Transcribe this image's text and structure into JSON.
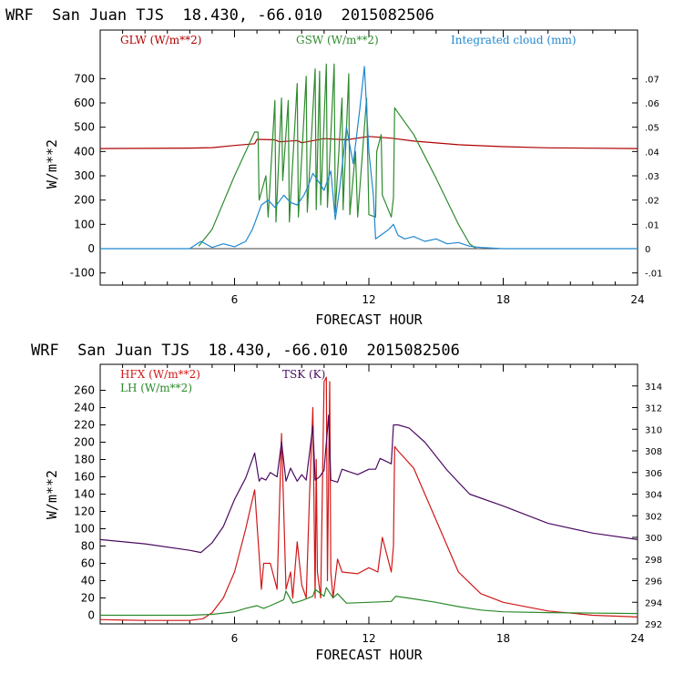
{
  "chart_data": [
    {
      "type": "line",
      "title": "WRF  San Juan TJS  18.430, -66.010  2015082506",
      "xlabel": "FORECAST HOUR",
      "ylabel": "W/m**2",
      "xlim": [
        0,
        24
      ],
      "ylim": [
        -150,
        900
      ],
      "y2lim": [
        -0.015,
        0.09
      ],
      "xticks": [
        "6",
        "12",
        "18",
        "24"
      ],
      "yticks": [
        "-100",
        "0",
        "100",
        "200",
        "300",
        "400",
        "500",
        "600",
        "700"
      ],
      "y2ticks": [
        "-.01",
        "0",
        ".01",
        ".02",
        ".03",
        ".04",
        ".05",
        ".06",
        ".07"
      ],
      "legend_placement": "top",
      "series": [
        {
          "name": "GLW (W/m**2)",
          "color": "#b00000",
          "axis": "left",
          "x": [
            0,
            2,
            4,
            5,
            6,
            6.9,
            7,
            7.8,
            8,
            8.8,
            9,
            10,
            11,
            12,
            13,
            14,
            16,
            18,
            20,
            24
          ],
          "y": [
            412,
            413,
            414,
            416,
            425,
            432,
            450,
            448,
            440,
            445,
            436,
            453,
            448,
            462,
            455,
            443,
            428,
            420,
            415,
            412
          ]
        },
        {
          "name": "GSW (W/m**2)",
          "color": "#2e8b2e",
          "axis": "left",
          "x": [
            4.4,
            5,
            6,
            6.9,
            7.05,
            7.1,
            7.4,
            7.5,
            7.8,
            7.85,
            8.1,
            8.15,
            8.4,
            8.45,
            8.8,
            8.85,
            9.2,
            9.25,
            9.6,
            9.65,
            9.8,
            9.85,
            10.1,
            10.15,
            10.45,
            10.5,
            10.8,
            10.85,
            11.1,
            11.15,
            11.4,
            11.5,
            11.9,
            12,
            12.3,
            12.35,
            12.55,
            12.6,
            13.0,
            13.1,
            13.15,
            13.3,
            14,
            15,
            16,
            16.5,
            16.8
          ],
          "y": [
            10,
            80,
            300,
            480,
            480,
            200,
            300,
            130,
            610,
            110,
            620,
            280,
            610,
            110,
            680,
            130,
            710,
            150,
            740,
            160,
            730,
            180,
            760,
            170,
            760,
            150,
            620,
            160,
            720,
            140,
            400,
            130,
            620,
            140,
            130,
            400,
            470,
            220,
            130,
            210,
            580,
            560,
            470,
            290,
            100,
            20,
            0
          ]
        },
        {
          "name": "Integrated cloud (mm)",
          "color": "#1e88d0",
          "axis": "right",
          "x": [
            0,
            4,
            4.5,
            5,
            5.5,
            6,
            6.5,
            6.8,
            7.2,
            7.5,
            7.8,
            8.2,
            8.5,
            8.8,
            9.1,
            9.3,
            9.5,
            9.8,
            10,
            10.3,
            10.5,
            10.7,
            11,
            11.3,
            11.6,
            11.8,
            12,
            12.2,
            12.3,
            12.6,
            12.9,
            13.1,
            13.3,
            13.6,
            14,
            14.5,
            15,
            15.5,
            16,
            16.5,
            17,
            18,
            24
          ],
          "y": [
            0,
            0,
            0.003,
            0.0005,
            0.002,
            0.0008,
            0.003,
            0.008,
            0.018,
            0.02,
            0.017,
            0.022,
            0.019,
            0.018,
            0.022,
            0.026,
            0.031,
            0.027,
            0.024,
            0.032,
            0.012,
            0.025,
            0.05,
            0.035,
            0.058,
            0.075,
            0.04,
            0.022,
            0.004,
            0.006,
            0.008,
            0.01,
            0.0055,
            0.004,
            0.005,
            0.003,
            0.004,
            0.002,
            0.0025,
            0.001,
            0.0005,
            0,
            0
          ]
        }
      ]
    },
    {
      "type": "line",
      "title": "WRF  San Juan TJS  18.430, -66.010  2015082506",
      "xlabel": "FORECAST HOUR",
      "ylabel": "W/m**2",
      "xlim": [
        0,
        24
      ],
      "ylim": [
        -10,
        290
      ],
      "y2lim": [
        292,
        316
      ],
      "xticks": [
        "6",
        "12",
        "18",
        "24"
      ],
      "yticks": [
        "0",
        "20",
        "40",
        "60",
        "80",
        "100",
        "120",
        "140",
        "160",
        "180",
        "200",
        "220",
        "240",
        "260"
      ],
      "y2ticks": [
        "292",
        "294",
        "296",
        "298",
        "300",
        "302",
        "304",
        "306",
        "308",
        "310",
        "312",
        "314"
      ],
      "legend_placement": "top",
      "series": [
        {
          "name": "HFX (W/m**2)",
          "color": "#d01818",
          "axis": "left",
          "x": [
            0,
            2,
            4,
            4.6,
            5,
            5.5,
            6,
            6.5,
            6.9,
            7.1,
            7.2,
            7.3,
            7.6,
            7.9,
            8.1,
            8.3,
            8.5,
            8.6,
            8.8,
            9.0,
            9.2,
            9.35,
            9.5,
            9.6,
            9.65,
            9.7,
            9.85,
            10.0,
            10.1,
            10.15,
            10.25,
            10.3,
            10.4,
            10.6,
            10.8,
            11.5,
            12,
            12.4,
            12.6,
            13.0,
            13.1,
            13.15,
            13.3,
            14,
            15,
            16,
            17,
            18,
            20,
            22,
            24
          ],
          "y": [
            -5,
            -6,
            -6,
            -4,
            3,
            20,
            50,
            100,
            145,
            70,
            30,
            60,
            60,
            30,
            210,
            30,
            50,
            20,
            85,
            35,
            20,
            140,
            240,
            20,
            180,
            50,
            20,
            270,
            275,
            40,
            270,
            50,
            20,
            65,
            50,
            48,
            55,
            50,
            90,
            50,
            80,
            195,
            190,
            170,
            110,
            50,
            25,
            15,
            5,
            0,
            -2
          ]
        },
        {
          "name": "LH (W/m**2)",
          "color": "#2a8a2a",
          "axis": "left",
          "x": [
            0,
            4,
            5,
            6,
            6.5,
            7,
            7.3,
            7.6,
            8.2,
            8.3,
            8.6,
            9.0,
            9.5,
            9.6,
            10.0,
            10.1,
            10.4,
            10.6,
            11,
            12,
            13,
            13.2,
            14,
            15,
            16,
            17,
            18,
            20,
            24
          ],
          "y": [
            0,
            0,
            1,
            4,
            8,
            11,
            8,
            11,
            18,
            28,
            14,
            17,
            22,
            30,
            22,
            32,
            20,
            25,
            14,
            15,
            16,
            22,
            19,
            15,
            10,
            6,
            4,
            3,
            2
          ]
        },
        {
          "name": "TSK (K)",
          "color": "#4b0a60",
          "axis": "right",
          "x": [
            0,
            2,
            4,
            4.5,
            5,
            5.5,
            6,
            6.5,
            6.9,
            7.1,
            7.2,
            7.4,
            7.6,
            7.9,
            8.1,
            8.3,
            8.5,
            8.8,
            9.0,
            9.2,
            9.5,
            9.6,
            9.8,
            10.0,
            10.2,
            10.3,
            10.6,
            10.8,
            11.5,
            12,
            12.3,
            12.5,
            13.0,
            13.1,
            13.3,
            13.8,
            14.5,
            15.5,
            16.5,
            18,
            20,
            22,
            24
          ],
          "y": [
            299.8,
            299.4,
            298.8,
            298.6,
            299.5,
            301,
            303.5,
            305.5,
            307.8,
            305.2,
            305.5,
            305.3,
            306,
            305.6,
            308.8,
            305.2,
            306.4,
            305.2,
            305.8,
            305.3,
            310.3,
            305.3,
            305.6,
            306.2,
            311.3,
            305.3,
            305.1,
            306.3,
            305.8,
            306.3,
            306.3,
            307.3,
            306.8,
            310.4,
            310.4,
            310.1,
            308.8,
            306.2,
            304.0,
            302.9,
            301.3,
            300.4,
            299.8
          ]
        }
      ]
    }
  ]
}
